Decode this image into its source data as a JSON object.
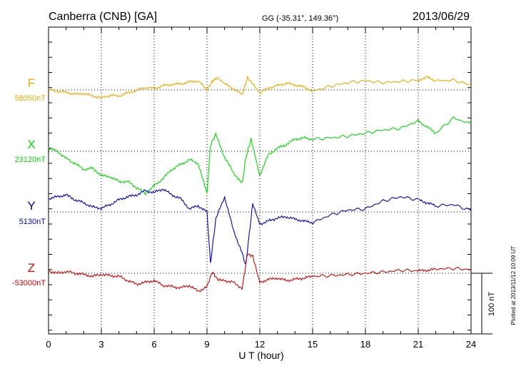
{
  "header": {
    "station": "Canberra (CNB)  [GA]",
    "coords": "GG (-35.31°, 149.36°)",
    "date": "2013/06/29"
  },
  "plotted_note": "Plotted at 2013/11/12 10:09 UT",
  "scale_bar_label": "100 nT",
  "chart_data": {
    "type": "line",
    "title": "Canberra (CNB)  [GA]",
    "xlabel": "U T (hour)",
    "ylabel": "",
    "xlim": [
      0,
      24
    ],
    "x_ticks": [
      0,
      3,
      6,
      9,
      12,
      15,
      18,
      21,
      24
    ],
    "grid": true,
    "y_units": "nT",
    "scale_bar_nT": 100,
    "series": [
      {
        "name": "F",
        "baseline_label": "58050nT",
        "baseline": 58050,
        "color": "#f0a800",
        "x": [
          0,
          0.5,
          1,
          1.5,
          2,
          2.5,
          3,
          3.5,
          4,
          4.5,
          5,
          5.5,
          6,
          6.5,
          7,
          7.5,
          8,
          8.5,
          9,
          9.3,
          9.6,
          10,
          10.5,
          11,
          11.3,
          11.6,
          12,
          12.5,
          13,
          13.5,
          14,
          14.5,
          15,
          16,
          17,
          18,
          19,
          20,
          21,
          21.5,
          22,
          23,
          24
        ],
        "values": [
          58050,
          58048,
          58046,
          58043,
          58044,
          58040,
          58037,
          58041,
          58040,
          58045,
          58049,
          58054,
          58052,
          58057,
          58059,
          58060,
          58063,
          58065,
          58050,
          58064,
          58070,
          58060,
          58052,
          58042,
          58070,
          58060,
          58045,
          58053,
          58057,
          58061,
          58058,
          58055,
          58048,
          58056,
          58062,
          58065,
          58062,
          58064,
          58066,
          58071,
          58065,
          58066,
          58058
        ]
      },
      {
        "name": "X",
        "baseline_label": "23120nT",
        "baseline": 23120,
        "color": "#00dd00",
        "x": [
          0,
          0.5,
          1,
          1.5,
          2,
          2.5,
          3,
          3.5,
          4,
          4.5,
          5,
          5.5,
          6,
          6.5,
          7,
          7.5,
          8,
          8.5,
          9,
          9.2,
          9.5,
          10,
          10.5,
          11,
          11.2,
          11.5,
          12,
          12.5,
          13,
          13.5,
          14,
          14.5,
          15,
          16,
          17,
          18,
          19,
          20,
          21,
          21.5,
          22,
          23,
          24
        ],
        "values": [
          23125,
          23120,
          23108,
          23100,
          23090,
          23092,
          23080,
          23078,
          23070,
          23070,
          23060,
          23050,
          23063,
          23075,
          23090,
          23098,
          23106,
          23100,
          23050,
          23130,
          23148,
          23110,
          23085,
          23066,
          23108,
          23140,
          23080,
          23115,
          23125,
          23131,
          23140,
          23142,
          23140,
          23142,
          23145,
          23150,
          23155,
          23158,
          23170,
          23160,
          23150,
          23175,
          23165
        ]
      },
      {
        "name": "Y",
        "baseline_label": "5130nT",
        "baseline": 5130,
        "color": "#0000cc",
        "x": [
          0,
          0.5,
          1,
          1.5,
          2,
          2.5,
          3,
          3.5,
          4,
          4.5,
          5,
          5.5,
          6,
          6.5,
          7,
          7.5,
          8,
          8.5,
          9,
          9.2,
          9.5,
          10,
          10.5,
          11,
          11.2,
          11.6,
          12,
          12.5,
          13,
          13.5,
          14,
          14.5,
          15,
          16,
          17,
          18,
          19,
          20,
          21,
          21.5,
          22,
          23,
          24
        ],
        "values": [
          5152,
          5155,
          5158,
          5150,
          5145,
          5138,
          5136,
          5142,
          5150,
          5155,
          5158,
          5165,
          5162,
          5168,
          5158,
          5152,
          5135,
          5140,
          5130,
          5045,
          5118,
          5155,
          5100,
          5062,
          5042,
          5144,
          5110,
          5115,
          5120,
          5122,
          5118,
          5115,
          5112,
          5125,
          5133,
          5135,
          5148,
          5155,
          5150,
          5145,
          5140,
          5142,
          5132
        ]
      },
      {
        "name": "Z",
        "baseline_label": "-53000nT",
        "baseline": -53000,
        "color": "#dd0000",
        "x": [
          0,
          0.5,
          1,
          1.5,
          2,
          2.5,
          3,
          3.5,
          4,
          4.5,
          5,
          5.5,
          6,
          6.5,
          7,
          7.5,
          8,
          8.5,
          9,
          9.3,
          9.6,
          10,
          10.5,
          11,
          11.3,
          11.6,
          12,
          12.5,
          13,
          13.5,
          14,
          14.5,
          15,
          16,
          17,
          18,
          19,
          20,
          21,
          21.5,
          22,
          23,
          24
        ],
        "values": [
          -52996,
          -53000,
          -52997,
          -53000,
          -53002,
          -53005,
          -53002,
          -53004,
          -53005,
          -53012,
          -53018,
          -53015,
          -53012,
          -53020,
          -53022,
          -53024,
          -53020,
          -53030,
          -53022,
          -52998,
          -53010,
          -53012,
          -53015,
          -53025,
          -52968,
          -52972,
          -53015,
          -53010,
          -53008,
          -53012,
          -53010,
          -53008,
          -53005,
          -53004,
          -53002,
          -53000,
          -52998,
          -52995,
          -52996,
          -52995,
          -52993,
          -52992,
          -52994
        ]
      }
    ]
  }
}
